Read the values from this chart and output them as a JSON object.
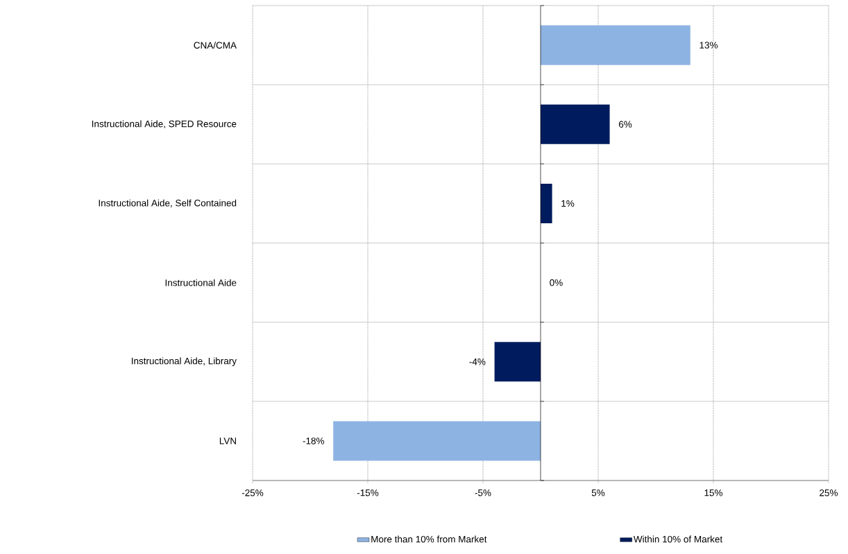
{
  "chart_data": {
    "type": "bar",
    "orientation": "horizontal",
    "categories": [
      "CNA/CMA",
      "Instructional Aide, SPED Resource",
      "Instructional Aide, Self Contained",
      "Instructional Aide",
      "Instructional Aide, Library",
      "LVN"
    ],
    "series": [
      {
        "name": "More than 10% from Market",
        "color": "#8db3e2",
        "values": [
          13,
          null,
          null,
          null,
          null,
          -18
        ],
        "value_labels": [
          "13%",
          null,
          null,
          null,
          null,
          "-18%"
        ]
      },
      {
        "name": "Within 10% of Market",
        "color": "#001c5e",
        "values": [
          null,
          6,
          1,
          0,
          -4,
          null
        ],
        "value_labels": [
          null,
          "6%",
          "1%",
          "0%",
          "-4%",
          null
        ]
      }
    ],
    "xlim": [
      -25,
      25
    ],
    "xticks": [
      {
        "value": -25,
        "label": "-25%"
      },
      {
        "value": -15,
        "label": "-15%"
      },
      {
        "value": -5,
        "label": "-5%"
      },
      {
        "value": 5,
        "label": "5%"
      },
      {
        "value": 15,
        "label": "15%"
      },
      {
        "value": 25,
        "label": "25%"
      }
    ],
    "grid": true,
    "legend": "bottom"
  }
}
